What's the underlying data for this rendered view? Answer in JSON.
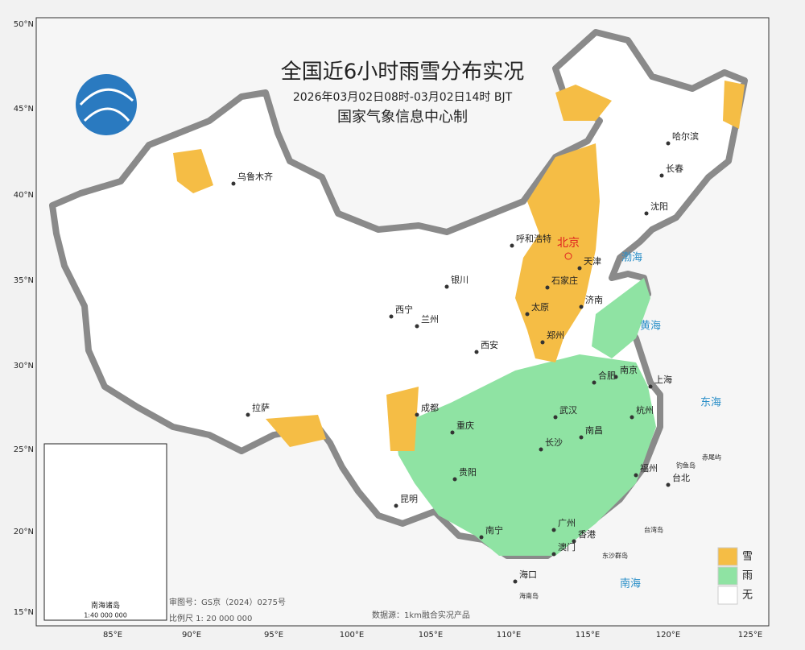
{
  "header": {
    "title": "全国近6小时雨雪分布实况",
    "subtitle": "2026年03月02日08时-03月02日14时 BJT",
    "producer": "国家气象信息中心制"
  },
  "latitude_labels": [
    "50°N",
    "45°N",
    "40°N",
    "35°N",
    "30°N",
    "25°N",
    "20°N",
    "15°N"
  ],
  "longitude_labels": [
    "85°E",
    "90°E",
    "95°E",
    "100°E",
    "105°E",
    "110°E",
    "115°E",
    "120°E",
    "125°E"
  ],
  "capital": "北京",
  "cities": [
    "乌鲁木齐",
    "哈尔滨",
    "长春",
    "沈阳",
    "呼和浩特",
    "天津",
    "石家庄",
    "银川",
    "太原",
    "济南",
    "西宁",
    "兰州",
    "西安",
    "郑州",
    "合肥",
    "南京",
    "上海",
    "拉萨",
    "成都",
    "武汉",
    "杭州",
    "重庆",
    "南昌",
    "长沙",
    "福州",
    "贵阳",
    "台北",
    "昆明",
    "广州",
    "香港",
    "澳门",
    "南宁",
    "海口"
  ],
  "seas": [
    "渤海",
    "黄海",
    "东海",
    "南海"
  ],
  "islands": [
    "钓鱼岛",
    "赤尾屿",
    "台湾岛",
    "东沙群岛",
    "海南岛"
  ],
  "legend": [
    {
      "label": "雪",
      "color": "#f5bd45"
    },
    {
      "label": "雨",
      "color": "#8fe3a3"
    },
    {
      "label": "无",
      "color": "#ffffff"
    }
  ],
  "inset": {
    "title": "南海诸岛",
    "scale": "1:40 000 000"
  },
  "notes": {
    "approval": "审图号：GS京（2024）0275号",
    "scale": "比例尺 1: 20 000 000",
    "source": "数据源：1km融合实况产品"
  }
}
